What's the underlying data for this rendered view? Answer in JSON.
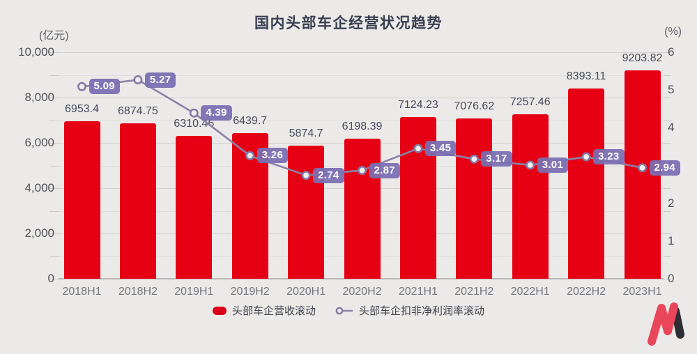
{
  "title": "国内头部车企经营状况趋势",
  "axis_units": {
    "left": "(亿元)",
    "right": "(%)"
  },
  "legend": [
    {
      "label": "头部车企营收滚动",
      "marker": "bar-swatch",
      "color": "#E60014"
    },
    {
      "label": "头部车企扣非净利润率滚动",
      "marker": "line-circle",
      "color": "#7C70B0"
    }
  ],
  "colors": {
    "background": "#ECEAE8",
    "bar": "#E60014",
    "line": "#8B81A8",
    "marker_fill": "#F2F0EF",
    "badge": "#7A6EB1",
    "title_text": "#373E50",
    "grid_major": "#D3D1D0",
    "grid_minor": "#DFDDDC"
  },
  "chart_data": {
    "type": "bar+line",
    "title": "国内头部车企经营状况趋势",
    "categories": [
      "2018H1",
      "2018H2",
      "2019H1",
      "2019H2",
      "2020H1",
      "2020H2",
      "2021H1",
      "2021H2",
      "2022H1",
      "2022H2",
      "2023H1"
    ],
    "series": [
      {
        "name": "头部车企营收滚动",
        "type": "bar",
        "axis": "left",
        "unit": "亿元",
        "values": [
          6953.4,
          6874.75,
          6310.46,
          6439.7,
          5874.7,
          6198.39,
          7124.23,
          7076.62,
          7257.46,
          8393.11,
          9203.82
        ]
      },
      {
        "name": "头部车企扣非净利润率滚动",
        "type": "line",
        "axis": "right",
        "unit": "%",
        "values": [
          5.09,
          5.27,
          4.39,
          3.26,
          2.74,
          2.87,
          3.45,
          3.17,
          3.01,
          3.23,
          2.94
        ]
      }
    ],
    "left_axis": {
      "label": "(亿元)",
      "min": 0,
      "max": 10000,
      "tick_step": 2000,
      "minor_step": 1000,
      "tick_labels": [
        "0",
        "2,000",
        "4,000",
        "6,000",
        "8,000",
        "10,000"
      ]
    },
    "right_axis": {
      "label": "(%)",
      "min": 0,
      "max": 6,
      "tick_step": 1,
      "tick_labels": [
        "0",
        "1",
        "2",
        "3",
        "4",
        "5",
        "6"
      ]
    },
    "grid": true,
    "legend_position": "bottom",
    "value_labels": "shown"
  },
  "logo": {
    "name": "M-brand-mark"
  }
}
